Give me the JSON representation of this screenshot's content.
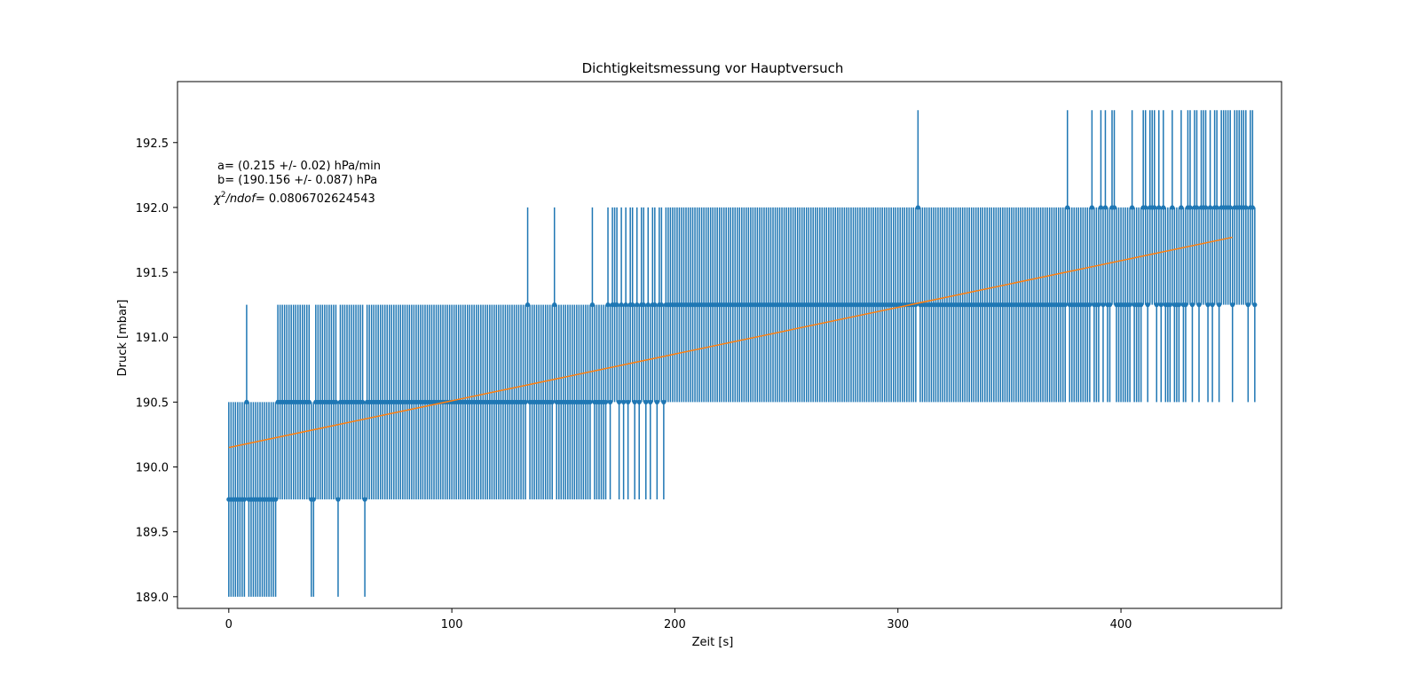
{
  "chart_data": {
    "type": "scatter",
    "title": "Dichtigkeitsmessung vor Hauptversuch",
    "xlabel": "Zeit [s]",
    "ylabel": "Druck [mbar]",
    "xlim": [
      -23,
      472
    ],
    "ylim": [
      188.91,
      192.97
    ],
    "xticks": [
      0,
      100,
      200,
      300,
      400
    ],
    "xtick_labels": [
      "0",
      "100",
      "200",
      "300",
      "400"
    ],
    "yticks": [
      189.0,
      189.5,
      190.0,
      190.5,
      191.0,
      191.5,
      192.0,
      192.5
    ],
    "ytick_labels": [
      "189.0",
      "189.5",
      "190.0",
      "190.5",
      "191.0",
      "191.5",
      "192.0",
      "192.5"
    ],
    "grid": false,
    "annotations": [
      "a= (0.215 +/- 0.02) hPa/min",
      "b= (190.156 +/- 0.087) hPa",
      "= 0.0806702624543"
    ],
    "annotation_symbol": "χ²/ndof",
    "series": [
      {
        "style": "errorbar",
        "color": "#1f77b4",
        "yerr": 0.75,
        "x_start": 0,
        "x_step": 1,
        "y_values": [
          189.75,
          189.75,
          189.75,
          189.75,
          189.75,
          189.75,
          189.75,
          189.75,
          190.5,
          189.75,
          189.75,
          189.75,
          189.75,
          189.75,
          189.75,
          189.75,
          189.75,
          189.75,
          189.75,
          189.75,
          189.75,
          189.75,
          190.5,
          190.5,
          190.5,
          190.5,
          190.5,
          190.5,
          190.5,
          190.5,
          190.5,
          190.5,
          190.5,
          190.5,
          190.5,
          190.5,
          190.5,
          189.75,
          189.75,
          190.5,
          190.5,
          190.5,
          190.5,
          190.5,
          190.5,
          190.5,
          190.5,
          190.5,
          190.5,
          189.75,
          190.5,
          190.5,
          190.5,
          190.5,
          190.5,
          190.5,
          190.5,
          190.5,
          190.5,
          190.5,
          190.5,
          189.75,
          190.5,
          190.5,
          190.5,
          190.5,
          190.5,
          190.5,
          190.5,
          190.5,
          190.5,
          190.5,
          190.5,
          190.5,
          190.5,
          190.5,
          190.5,
          190.5,
          190.5,
          190.5,
          190.5,
          190.5,
          190.5,
          190.5,
          190.5,
          190.5,
          190.5,
          190.5,
          190.5,
          190.5,
          190.5,
          190.5,
          190.5,
          190.5,
          190.5,
          190.5,
          190.5,
          190.5,
          190.5,
          190.5,
          190.5,
          190.5,
          190.5,
          190.5,
          190.5,
          190.5,
          190.5,
          190.5,
          190.5,
          190.5,
          190.5,
          190.5,
          190.5,
          190.5,
          190.5,
          190.5,
          190.5,
          190.5,
          190.5,
          190.5,
          190.5,
          190.5,
          190.5,
          190.5,
          190.5,
          190.5,
          190.5,
          190.5,
          190.5,
          190.5,
          190.5,
          190.5,
          190.5,
          190.5,
          191.25,
          190.5,
          190.5,
          190.5,
          190.5,
          190.5,
          190.5,
          190.5,
          190.5,
          190.5,
          190.5,
          190.5,
          191.25,
          190.5,
          190.5,
          190.5,
          190.5,
          190.5,
          190.5,
          190.5,
          190.5,
          190.5,
          190.5,
          190.5,
          190.5,
          190.5,
          190.5,
          190.5,
          190.5,
          191.25,
          190.5,
          190.5,
          190.5,
          190.5,
          190.5,
          190.5,
          191.25,
          190.5,
          191.25,
          191.25,
          191.25,
          190.5,
          191.25,
          190.5,
          191.25,
          190.5,
          191.25,
          191.25,
          190.5,
          191.25,
          190.5,
          191.25,
          191.25,
          190.5,
          191.25,
          190.5,
          191.25,
          191.25,
          190.5,
          191.25,
          191.25,
          190.5,
          191.25,
          191.25,
          191.25,
          191.25,
          191.25,
          191.25,
          191.25,
          191.25,
          191.25,
          191.25,
          191.25,
          191.25,
          191.25,
          191.25,
          191.25,
          191.25,
          191.25,
          191.25,
          191.25,
          191.25,
          191.25,
          191.25,
          191.25,
          191.25,
          191.25,
          191.25,
          191.25,
          191.25,
          191.25,
          191.25,
          191.25,
          191.25,
          191.25,
          191.25,
          191.25,
          191.25,
          191.25,
          191.25,
          191.25,
          191.25,
          191.25,
          191.25,
          191.25,
          191.25,
          191.25,
          191.25,
          191.25,
          191.25,
          191.25,
          191.25,
          191.25,
          191.25,
          191.25,
          191.25,
          191.25,
          191.25,
          191.25,
          191.25,
          191.25,
          191.25,
          191.25,
          191.25,
          191.25,
          191.25,
          191.25,
          191.25,
          191.25,
          191.25,
          191.25,
          191.25,
          191.25,
          191.25,
          191.25,
          191.25,
          191.25,
          191.25,
          191.25,
          191.25,
          191.25,
          191.25,
          191.25,
          191.25,
          191.25,
          191.25,
          191.25,
          191.25,
          191.25,
          191.25,
          191.25,
          191.25,
          191.25,
          191.25,
          191.25,
          191.25,
          191.25,
          191.25,
          191.25,
          191.25,
          191.25,
          191.25,
          191.25,
          191.25,
          191.25,
          191.25,
          191.25,
          191.25,
          191.25,
          191.25,
          191.25,
          191.25,
          191.25,
          191.25,
          191.25,
          192.0,
          191.25,
          191.25,
          191.25,
          191.25,
          191.25,
          191.25,
          191.25,
          191.25,
          191.25,
          191.25,
          191.25,
          191.25,
          191.25,
          191.25,
          191.25,
          191.25,
          191.25,
          191.25,
          191.25,
          191.25,
          191.25,
          191.25,
          191.25,
          191.25,
          191.25,
          191.25,
          191.25,
          191.25,
          191.25,
          191.25,
          191.25,
          191.25,
          191.25,
          191.25,
          191.25,
          191.25,
          191.25,
          191.25,
          191.25,
          191.25,
          191.25,
          191.25,
          191.25,
          191.25,
          191.25,
          191.25,
          191.25,
          191.25,
          191.25,
          191.25,
          191.25,
          191.25,
          191.25,
          191.25,
          191.25,
          191.25,
          191.25,
          191.25,
          191.25,
          191.25,
          191.25,
          191.25,
          191.25,
          191.25,
          191.25,
          191.25,
          192.0,
          191.25,
          191.25,
          191.25,
          191.25,
          191.25,
          191.25,
          191.25,
          191.25,
          191.25,
          191.25,
          192.0,
          191.25,
          191.25,
          191.25,
          192.0,
          191.25,
          192.0,
          191.25,
          191.25,
          192.0,
          192.0,
          191.25,
          191.25,
          191.25,
          191.25,
          191.25,
          191.25,
          191.25,
          192.0,
          191.25,
          191.25,
          191.25,
          191.25,
          192.0,
          192.0,
          191.25,
          192.0,
          192.0,
          192.0,
          191.25,
          192.0,
          191.25,
          192.0,
          191.25,
          191.25,
          191.25,
          192.0,
          191.25,
          191.25,
          191.25,
          192.0,
          191.25,
          191.25,
          192.0,
          192.0,
          191.25,
          192.0,
          192.0,
          191.25,
          192.0,
          192.0,
          192.0,
          191.25,
          192.0,
          191.25,
          192.0,
          192.0,
          191.25,
          192.0,
          192.0,
          192.0,
          192.0,
          192.0,
          191.25,
          192.0,
          192.0,
          192.0,
          192.0,
          192.0,
          192.0,
          191.25,
          192.0,
          192.0,
          191.25
        ]
      },
      {
        "style": "line",
        "color": "#ff7f0e",
        "x": [
          0,
          450
        ],
        "y": [
          190.15,
          191.77
        ]
      }
    ]
  }
}
